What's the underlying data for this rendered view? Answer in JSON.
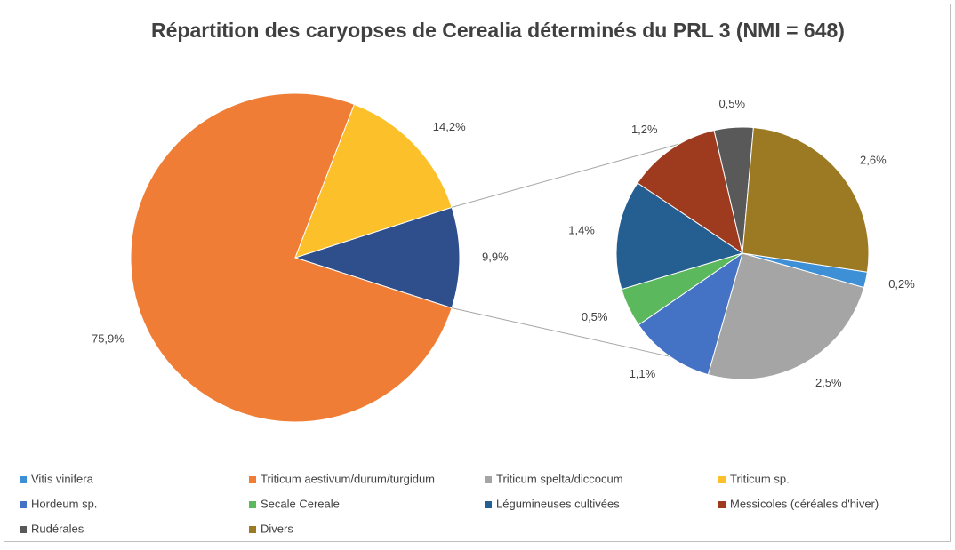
{
  "chart_data": {
    "type": "pie-of-pie",
    "title": "Répartition des caryopses de Cerealia déterminés du PRL 3 (NMI = 648)",
    "categories": [
      "Vitis vinifera",
      "Triticum aestivum/durum/turgidum",
      "Triticum spelta/diccocum",
      "Triticum sp.",
      "Hordeum sp.",
      "Secale Cereale",
      "Légumineuses cultivées",
      "Messicoles (céréales d'hiver)",
      "Rudérales",
      "Divers"
    ],
    "values": [
      0.2,
      75.9,
      2.5,
      14.2,
      1.1,
      0.5,
      1.4,
      1.2,
      0.5,
      2.6
    ],
    "value_labels": [
      "0,2%",
      "75,9%",
      "2,5%",
      "14,2%",
      "1,1%",
      "0,5%",
      "1,4%",
      "1,2%",
      "0,5%",
      "2,6%"
    ],
    "colors": [
      "#3d8fd6",
      "#ef7d35",
      "#a5a5a5",
      "#fcc12a",
      "#4472c4",
      "#5cb85c",
      "#255e91",
      "#9e3b1f",
      "#595959",
      "#9c7a24"
    ],
    "split": [
      "secondary",
      "main",
      "secondary",
      "main",
      "secondary",
      "secondary",
      "secondary",
      "secondary",
      "secondary",
      "secondary"
    ],
    "other": {
      "value": 9.9,
      "value_label": "9,9%",
      "color": "#2f4e8c"
    }
  }
}
